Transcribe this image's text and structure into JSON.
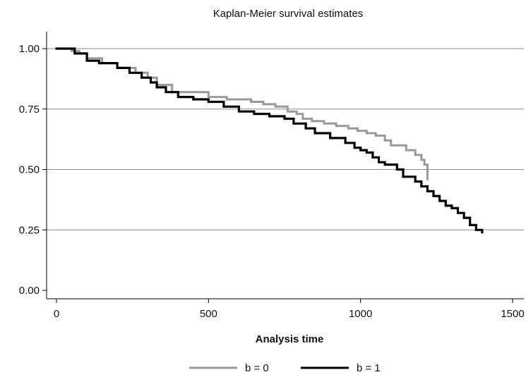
{
  "chart_data": {
    "type": "line",
    "title": "Kaplan-Meier survival estimates",
    "xlabel": "Analysis time",
    "ylabel": "",
    "xlim": [
      -30,
      1510
    ],
    "ylim": [
      0,
      1
    ],
    "xticks": [
      0,
      500,
      1000,
      1500
    ],
    "yticks": [
      0.0,
      0.25,
      0.5,
      0.75,
      1.0
    ],
    "xtick_labels": [
      "0",
      "500",
      "1000",
      "1500"
    ],
    "ytick_labels": [
      "0.00",
      "0.25",
      "0.50",
      "0.75",
      "1.00"
    ],
    "grid": "horizontal",
    "legend": "bottom-center",
    "series": [
      {
        "name": "b = 0",
        "color": "#999999",
        "x": [
          0,
          50,
          75,
          100,
          150,
          200,
          260,
          300,
          330,
          380,
          500,
          560,
          640,
          680,
          720,
          760,
          790,
          810,
          840,
          880,
          920,
          960,
          990,
          1020,
          1050,
          1080,
          1100,
          1150,
          1180,
          1200,
          1210,
          1220
        ],
        "y": [
          1.0,
          0.99,
          0.98,
          0.96,
          0.94,
          0.92,
          0.9,
          0.88,
          0.85,
          0.82,
          0.8,
          0.79,
          0.78,
          0.77,
          0.76,
          0.74,
          0.73,
          0.71,
          0.7,
          0.69,
          0.68,
          0.67,
          0.66,
          0.65,
          0.64,
          0.62,
          0.6,
          0.58,
          0.56,
          0.54,
          0.52,
          0.46
        ]
      },
      {
        "name": "b = 1",
        "color": "#000000",
        "x": [
          0,
          60,
          100,
          140,
          200,
          240,
          280,
          310,
          330,
          360,
          400,
          450,
          500,
          550,
          600,
          650,
          700,
          750,
          780,
          820,
          850,
          900,
          950,
          980,
          1000,
          1020,
          1040,
          1060,
          1080,
          1120,
          1140,
          1180,
          1200,
          1220,
          1240,
          1260,
          1280,
          1300,
          1320,
          1340,
          1360,
          1380,
          1400
        ],
        "y": [
          1.0,
          0.98,
          0.95,
          0.94,
          0.92,
          0.9,
          0.88,
          0.86,
          0.84,
          0.82,
          0.8,
          0.79,
          0.78,
          0.76,
          0.74,
          0.73,
          0.72,
          0.71,
          0.69,
          0.67,
          0.65,
          0.63,
          0.61,
          0.59,
          0.58,
          0.57,
          0.55,
          0.53,
          0.52,
          0.5,
          0.47,
          0.45,
          0.43,
          0.41,
          0.39,
          0.37,
          0.35,
          0.34,
          0.32,
          0.3,
          0.27,
          0.25,
          0.24
        ]
      }
    ]
  }
}
